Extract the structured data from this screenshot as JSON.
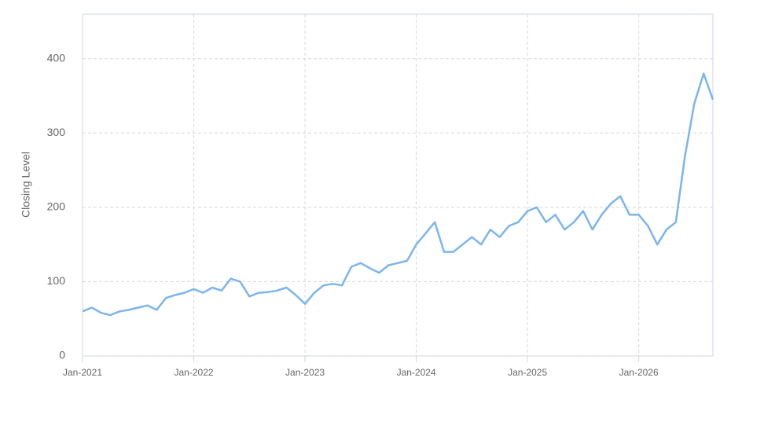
{
  "chart_data": {
    "type": "line",
    "y_label": "Closing Level",
    "x": [
      "2021-01",
      "2021-02",
      "2021-03",
      "2021-04",
      "2021-05",
      "2021-06",
      "2021-07",
      "2021-08",
      "2021-09",
      "2021-10",
      "2021-11",
      "2021-12",
      "2022-01",
      "2022-02",
      "2022-03",
      "2022-04",
      "2022-05",
      "2022-06",
      "2022-07",
      "2022-08",
      "2022-09",
      "2022-10",
      "2022-11",
      "2022-12",
      "2023-01",
      "2023-02",
      "2023-03",
      "2023-04",
      "2023-05",
      "2023-06",
      "2023-07",
      "2023-08",
      "2023-09",
      "2023-10",
      "2023-11",
      "2023-12",
      "2024-01",
      "2024-02",
      "2024-03",
      "2024-04",
      "2024-05",
      "2024-06",
      "2024-07",
      "2024-08",
      "2024-09",
      "2024-10",
      "2024-11",
      "2024-12",
      "2025-01",
      "2025-02",
      "2025-03",
      "2025-04",
      "2025-05",
      "2025-06",
      "2025-07",
      "2025-08",
      "2025-09",
      "2025-10",
      "2025-11",
      "2025-12",
      "2026-01",
      "2026-02",
      "2026-03",
      "2026-04",
      "2026-05",
      "2026-06",
      "2026-07",
      "2026-08",
      "2026-09"
    ],
    "series": [
      {
        "name": "Closing Level",
        "color": "#7cb5ec",
        "values": [
          60,
          65,
          58,
          55,
          60,
          62,
          65,
          68,
          62,
          78,
          82,
          85,
          90,
          85,
          92,
          88,
          104,
          100,
          80,
          85,
          86,
          88,
          92,
          82,
          70,
          85,
          95,
          97,
          95,
          120,
          125,
          118,
          112,
          122,
          125,
          128,
          150,
          165,
          180,
          140,
          140,
          150,
          160,
          150,
          170,
          160,
          175,
          180,
          195,
          200,
          180,
          190,
          170,
          180,
          195,
          170,
          190,
          205,
          215,
          190,
          190,
          175,
          150,
          170,
          180,
          270,
          340,
          380,
          345
        ]
      }
    ],
    "xlim": [
      "2021-01",
      "2026-09"
    ],
    "xticks": [
      {
        "value": "2021-01",
        "label": "Jan-2021"
      },
      {
        "value": "2022-01",
        "label": "Jan-2022"
      },
      {
        "value": "2023-01",
        "label": "Jan-2023"
      },
      {
        "value": "2024-01",
        "label": "Jan-2024"
      },
      {
        "value": "2025-01",
        "label": "Jan-2025"
      },
      {
        "value": "2026-01",
        "label": "Jan-2026"
      }
    ],
    "ylim": [
      0,
      460
    ],
    "yticks": [
      0,
      100,
      200,
      300,
      400
    ],
    "grid": true
  }
}
